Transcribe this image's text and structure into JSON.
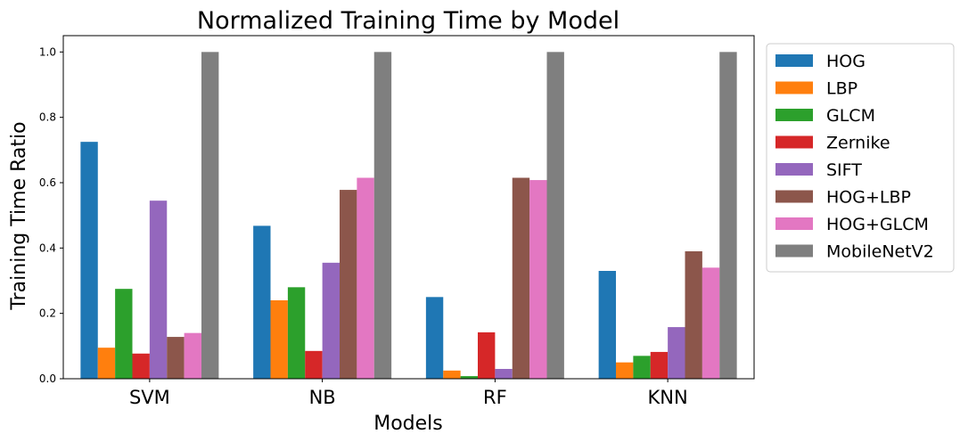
{
  "chart_data": {
    "type": "bar",
    "title": "Normalized Training Time by Model",
    "xlabel": "Models",
    "ylabel": "Training Time Ratio",
    "ylim": [
      0,
      1.05
    ],
    "yticks": [
      "0.0",
      "0.2",
      "0.4",
      "0.6",
      "0.8",
      "1.0"
    ],
    "categories": [
      "SVM",
      "NB",
      "RF",
      "KNN"
    ],
    "legend_position": "outside-right",
    "grid": false,
    "series": [
      {
        "name": "HOG",
        "color": "#1f77b4",
        "values": [
          0.725,
          0.468,
          0.25,
          0.33
        ]
      },
      {
        "name": "LBP",
        "color": "#ff7f0e",
        "values": [
          0.095,
          0.24,
          0.025,
          0.05
        ]
      },
      {
        "name": "GLCM",
        "color": "#2ca02c",
        "values": [
          0.275,
          0.28,
          0.008,
          0.07
        ]
      },
      {
        "name": "Zernike",
        "color": "#d62728",
        "values": [
          0.077,
          0.085,
          0.142,
          0.082
        ]
      },
      {
        "name": "SIFT",
        "color": "#9467bd",
        "values": [
          0.545,
          0.355,
          0.03,
          0.158
        ]
      },
      {
        "name": "HOG+LBP",
        "color": "#8c564b",
        "values": [
          0.128,
          0.578,
          0.615,
          0.39
        ]
      },
      {
        "name": "HOG+GLCM",
        "color": "#e377c2",
        "values": [
          0.14,
          0.615,
          0.608,
          0.34
        ]
      },
      {
        "name": "MobileNetV2",
        "color": "#7f7f7f",
        "values": [
          1.0,
          1.0,
          1.0,
          1.0
        ]
      }
    ]
  }
}
